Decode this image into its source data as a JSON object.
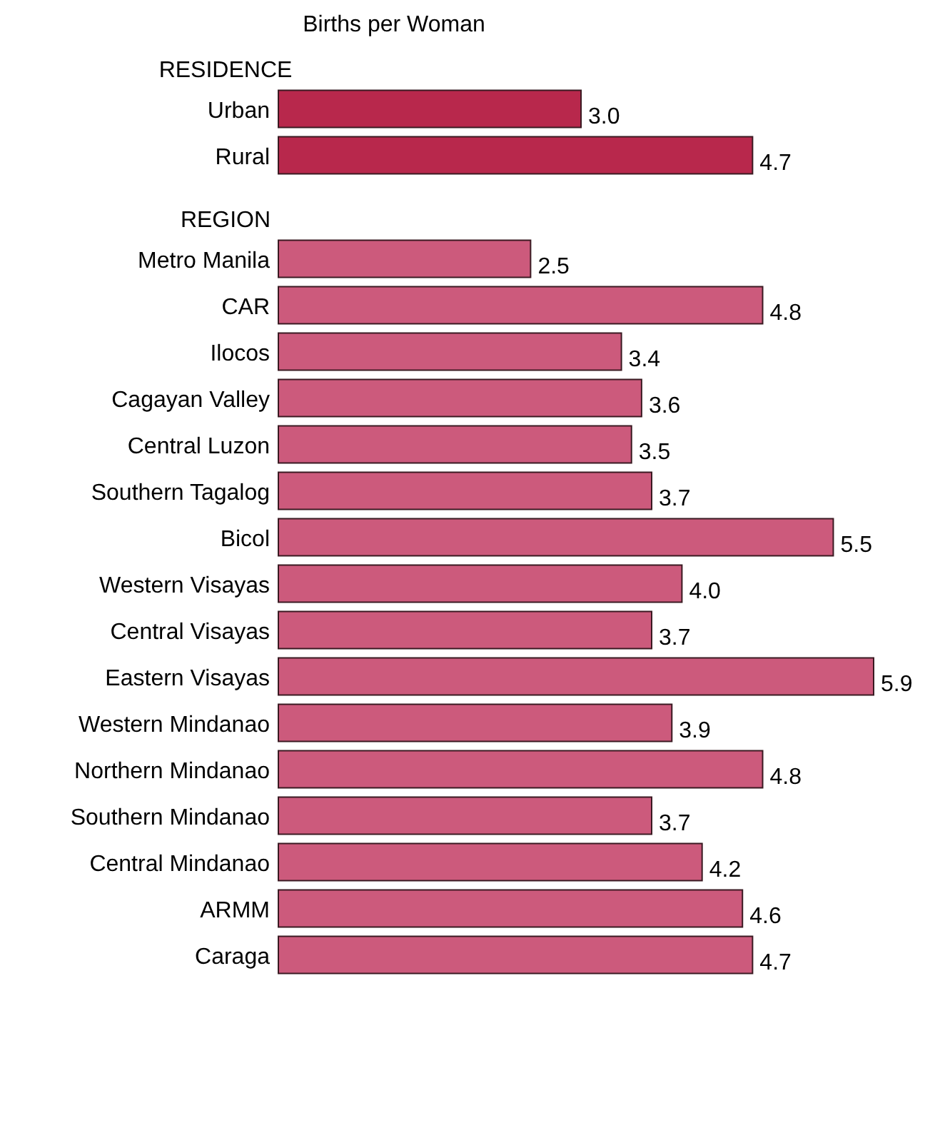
{
  "chart_data": [
    {
      "type": "bar",
      "orientation": "horizontal",
      "title": "Births per Woman",
      "subtitle": "RESIDENCE",
      "categories": [
        "Urban",
        "Rural"
      ],
      "values": [
        3.0,
        4.7
      ],
      "value_labels": [
        "3.0",
        "4.7"
      ],
      "color": "#b8284c"
    },
    {
      "type": "bar",
      "orientation": "horizontal",
      "subtitle": "REGION",
      "categories": [
        "Metro Manila",
        "CAR",
        "Ilocos",
        "Cagayan Valley",
        "Central Luzon",
        "Southern Tagalog",
        "Bicol",
        "Western Visayas",
        "Central Visayas",
        "Eastern Visayas",
        "Western Mindanao",
        "Northern Mindanao",
        "Southern Mindanao",
        "Central Mindanao",
        "ARMM",
        "Caraga"
      ],
      "values": [
        2.5,
        4.8,
        3.4,
        3.6,
        3.5,
        3.7,
        5.5,
        4.0,
        3.7,
        5.9,
        3.9,
        4.8,
        3.7,
        4.2,
        4.6,
        4.7
      ],
      "value_labels": [
        "2.5",
        "4.8",
        "3.4",
        "3.6",
        "3.5",
        "3.7",
        "5.5",
        "4.0",
        "3.7",
        "5.9",
        "3.9",
        "4.8",
        "3.7",
        "4.2",
        "4.6",
        "4.7"
      ],
      "color": "#cc5a7c"
    }
  ]
}
